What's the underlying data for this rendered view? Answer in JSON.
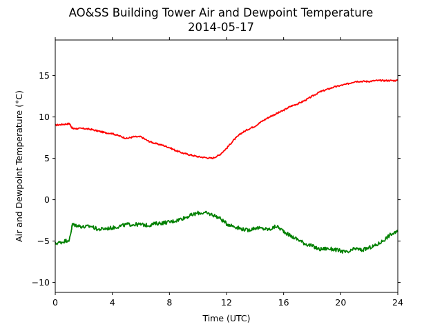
{
  "chart_data": {
    "type": "line",
    "title": "AO&SS Building Tower Air and Dewpoint Temperature",
    "subtitle": "2014-05-17",
    "xlabel": "Time (UTC)",
    "ylabel": "Air and Dewpoint Temperature (°C)",
    "xlim": [
      0,
      24
    ],
    "ylim": [
      -11.2,
      19.3
    ],
    "xticks": [
      0,
      4,
      8,
      12,
      16,
      20,
      24
    ],
    "yticks": [
      -10,
      -5,
      0,
      5,
      10,
      15
    ],
    "grid": false,
    "legend": "none",
    "series": [
      {
        "color": "#ff0000",
        "x": [
          0,
          0.5,
          1.0,
          1.2,
          1.5,
          2.0,
          2.5,
          3.0,
          3.5,
          4.0,
          4.5,
          5.0,
          5.5,
          6.0,
          6.5,
          7.0,
          7.5,
          8.0,
          8.5,
          9.0,
          9.5,
          10.0,
          10.5,
          11.0,
          11.5,
          12.0,
          12.5,
          13.0,
          13.5,
          14.0,
          14.5,
          15.0,
          15.5,
          16.0,
          16.5,
          17.0,
          17.5,
          18.0,
          18.5,
          19.0,
          19.5,
          20.0,
          20.5,
          21.0,
          21.5,
          22.0,
          22.5,
          23.0,
          23.5,
          24.0
        ],
        "values": [
          9.0,
          9.1,
          9.2,
          8.6,
          8.6,
          8.6,
          8.5,
          8.3,
          8.1,
          8.0,
          7.7,
          7.4,
          7.6,
          7.6,
          7.1,
          6.8,
          6.6,
          6.3,
          5.9,
          5.6,
          5.4,
          5.2,
          5.1,
          5.0,
          5.4,
          6.2,
          7.2,
          8.0,
          8.5,
          8.9,
          9.5,
          10.0,
          10.4,
          10.8,
          11.3,
          11.6,
          12.0,
          12.5,
          13.0,
          13.3,
          13.6,
          13.8,
          14.0,
          14.3,
          14.3,
          14.3,
          14.4,
          14.4,
          14.4,
          14.4
        ]
      },
      {
        "color": "#008000",
        "x": [
          0,
          0.5,
          1.0,
          1.2,
          1.5,
          2.0,
          2.5,
          3.0,
          3.5,
          4.0,
          4.5,
          5.0,
          5.5,
          6.0,
          6.5,
          7.0,
          7.5,
          8.0,
          8.5,
          9.0,
          9.5,
          10.0,
          10.5,
          11.0,
          11.5,
          12.0,
          12.5,
          13.0,
          13.5,
          14.0,
          14.5,
          15.0,
          15.5,
          16.0,
          16.5,
          17.0,
          17.5,
          18.0,
          18.5,
          19.0,
          19.5,
          20.0,
          20.5,
          21.0,
          21.5,
          22.0,
          22.5,
          23.0,
          23.5,
          24.0
        ],
        "values": [
          -5.3,
          -5.1,
          -4.8,
          -3.0,
          -3.1,
          -3.3,
          -3.2,
          -3.6,
          -3.5,
          -3.4,
          -3.2,
          -3.0,
          -3.0,
          -3.0,
          -3.1,
          -2.9,
          -2.8,
          -2.7,
          -2.5,
          -2.2,
          -1.9,
          -1.6,
          -1.6,
          -1.8,
          -2.2,
          -2.9,
          -3.2,
          -3.5,
          -3.7,
          -3.4,
          -3.5,
          -3.6,
          -3.2,
          -3.8,
          -4.4,
          -4.8,
          -5.3,
          -5.6,
          -6.0,
          -5.9,
          -6.0,
          -6.2,
          -6.4,
          -5.9,
          -6.1,
          -5.8,
          -5.5,
          -4.9,
          -4.2,
          -3.9
        ]
      }
    ]
  }
}
